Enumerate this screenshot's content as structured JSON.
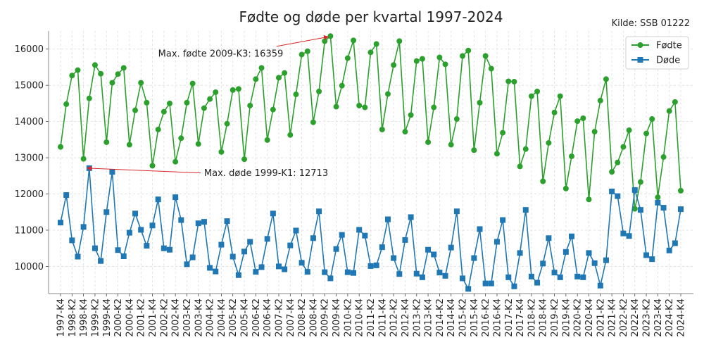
{
  "chart_data": {
    "type": "line",
    "title": "Fødte og døde per kvartal 1997-2024",
    "source_note": "Kilde: SSB 01222",
    "xlabel": "",
    "ylabel": "",
    "ylim": [
      9250,
      16500
    ],
    "yticks": [
      10000,
      11000,
      12000,
      13000,
      14000,
      15000,
      16000
    ],
    "grid": true,
    "legend_position": "top-right",
    "x": [
      "1997-K4",
      "1998-K1",
      "1998-K2",
      "1998-K3",
      "1998-K4",
      "1999-K1",
      "1999-K2",
      "1999-K3",
      "1999-K4",
      "2000-K1",
      "2000-K2",
      "2000-K3",
      "2000-K4",
      "2001-K1",
      "2001-K2",
      "2001-K3",
      "2001-K4",
      "2002-K1",
      "2002-K2",
      "2002-K3",
      "2002-K4",
      "2003-K1",
      "2003-K2",
      "2003-K3",
      "2003-K4",
      "2004-K1",
      "2004-K2",
      "2004-K3",
      "2004-K4",
      "2005-K1",
      "2005-K2",
      "2005-K3",
      "2005-K4",
      "2006-K1",
      "2006-K2",
      "2006-K3",
      "2006-K4",
      "2007-K1",
      "2007-K2",
      "2007-K3",
      "2007-K4",
      "2008-K1",
      "2008-K2",
      "2008-K3",
      "2008-K4",
      "2009-K1",
      "2009-K2",
      "2009-K3",
      "2009-K4",
      "2010-K1",
      "2010-K2",
      "2010-K3",
      "2010-K4",
      "2011-K1",
      "2011-K2",
      "2011-K3",
      "2011-K4",
      "2012-K1",
      "2012-K2",
      "2012-K3",
      "2012-K4",
      "2013-K1",
      "2013-K2",
      "2013-K3",
      "2013-K4",
      "2014-K1",
      "2014-K2",
      "2014-K3",
      "2014-K4",
      "2015-K1",
      "2015-K2",
      "2015-K3",
      "2015-K4",
      "2016-K1",
      "2016-K2",
      "2016-K3",
      "2016-K4",
      "2017-K1",
      "2017-K2",
      "2017-K3",
      "2017-K4",
      "2018-K1",
      "2018-K2",
      "2018-K3",
      "2018-K4",
      "2019-K1",
      "2019-K2",
      "2019-K3",
      "2019-K4",
      "2020-K1",
      "2020-K2",
      "2020-K3",
      "2020-K4",
      "2021-K1",
      "2021-K2",
      "2021-K3",
      "2021-K4",
      "2022-K1",
      "2022-K2",
      "2022-K3",
      "2022-K4",
      "2023-K1",
      "2023-K2",
      "2023-K3",
      "2023-K4",
      "2024-K1",
      "2024-K2",
      "2024-K3",
      "2024-K4"
    ],
    "xtick_labels": [
      "1997-K4",
      "1998-K2",
      "1998-K4",
      "1999-K2",
      "1999-K4",
      "2000-K2",
      "2000-K4",
      "2001-K2",
      "2001-K4",
      "2002-K2",
      "2002-K4",
      "2003-K2",
      "2003-K4",
      "2004-K2",
      "2004-K4",
      "2005-K2",
      "2005-K4",
      "2006-K2",
      "2006-K4",
      "2007-K2",
      "2007-K4",
      "2008-K2",
      "2008-K4",
      "2009-K2",
      "2009-K4",
      "2010-K2",
      "2010-K4",
      "2011-K2",
      "2011-K4",
      "2012-K2",
      "2012-K4",
      "2013-K2",
      "2013-K4",
      "2014-K2",
      "2014-K4",
      "2015-K2",
      "2015-K4",
      "2016-K2",
      "2016-K4",
      "2017-K2",
      "2017-K4",
      "2018-K2",
      "2018-K4",
      "2019-K2",
      "2019-K4",
      "2020-K2",
      "2020-K4",
      "2021-K2",
      "2021-K4",
      "2022-K2",
      "2022-K4",
      "2023-K2",
      "2023-K4",
      "2024-K2",
      "2024-K4"
    ],
    "series": [
      {
        "name": "Fødte",
        "color": "#2ca02c",
        "marker": "circle",
        "values": [
          13300,
          14480,
          15270,
          15420,
          12970,
          14640,
          15560,
          15320,
          13430,
          15070,
          15310,
          15480,
          13360,
          14310,
          15070,
          14520,
          12780,
          13780,
          14270,
          14500,
          12890,
          13540,
          14520,
          15050,
          13380,
          14370,
          14620,
          14810,
          13160,
          13940,
          14870,
          14900,
          12960,
          14440,
          15170,
          15480,
          13490,
          14330,
          15210,
          15340,
          13630,
          14750,
          15850,
          15940,
          13980,
          14830,
          16220,
          16359,
          14410,
          14990,
          15750,
          16240,
          14440,
          14390,
          15910,
          16140,
          13780,
          14760,
          15560,
          16220,
          13720,
          14180,
          15670,
          15730,
          13430,
          14390,
          15770,
          15580,
          13360,
          14070,
          15810,
          15960,
          13210,
          14520,
          15810,
          15460,
          13110,
          13690,
          15110,
          15100,
          12760,
          13240,
          14700,
          14830,
          12350,
          13410,
          14250,
          14700,
          12150,
          13040,
          14010,
          14090,
          11850,
          13720,
          14580,
          15170,
          12610,
          12870,
          13300,
          13760,
          11590,
          12330,
          13670,
          14070,
          11910,
          13020,
          14290,
          14540,
          12090
        ]
      },
      {
        "name": "Døde",
        "color": "#1f77b4",
        "marker": "square",
        "values": [
          11210,
          11970,
          10720,
          10270,
          11090,
          12713,
          10500,
          10150,
          11500,
          12610,
          10450,
          10280,
          10930,
          11460,
          11010,
          10570,
          11130,
          11850,
          10500,
          10460,
          11910,
          11280,
          10060,
          10250,
          11190,
          11230,
          9960,
          9860,
          10600,
          11250,
          10270,
          9760,
          10410,
          10680,
          9850,
          9980,
          10760,
          11460,
          10000,
          9920,
          10580,
          10990,
          10100,
          9850,
          10780,
          11520,
          9840,
          9670,
          10480,
          10870,
          9840,
          9820,
          11010,
          10850,
          10010,
          10030,
          10530,
          11300,
          10230,
          9790,
          10730,
          11360,
          9800,
          9700,
          10460,
          10330,
          9830,
          9740,
          10520,
          11520,
          9670,
          9380,
          10230,
          11030,
          9530,
          9530,
          10680,
          11280,
          9700,
          9450,
          10370,
          11560,
          9720,
          9550,
          10080,
          10780,
          9830,
          9700,
          10400,
          10830,
          9720,
          9700,
          10370,
          10090,
          9470,
          10170,
          12070,
          11940,
          10910,
          10840,
          12110,
          11560,
          10310,
          10200,
          11760,
          11620,
          10440,
          10640,
          11580
        ]
      }
    ],
    "annotations": [
      {
        "text": "Max. fødte 2009-K3: 16359",
        "x": "2009-K3",
        "y": 16359,
        "text_x": "2002-K1",
        "text_y": 15880
      },
      {
        "text": "Max. døde 1999-K1: 12713",
        "x": "1999-K1",
        "y": 12713,
        "text_x": "2004-K1",
        "text_y": 12580
      }
    ]
  }
}
